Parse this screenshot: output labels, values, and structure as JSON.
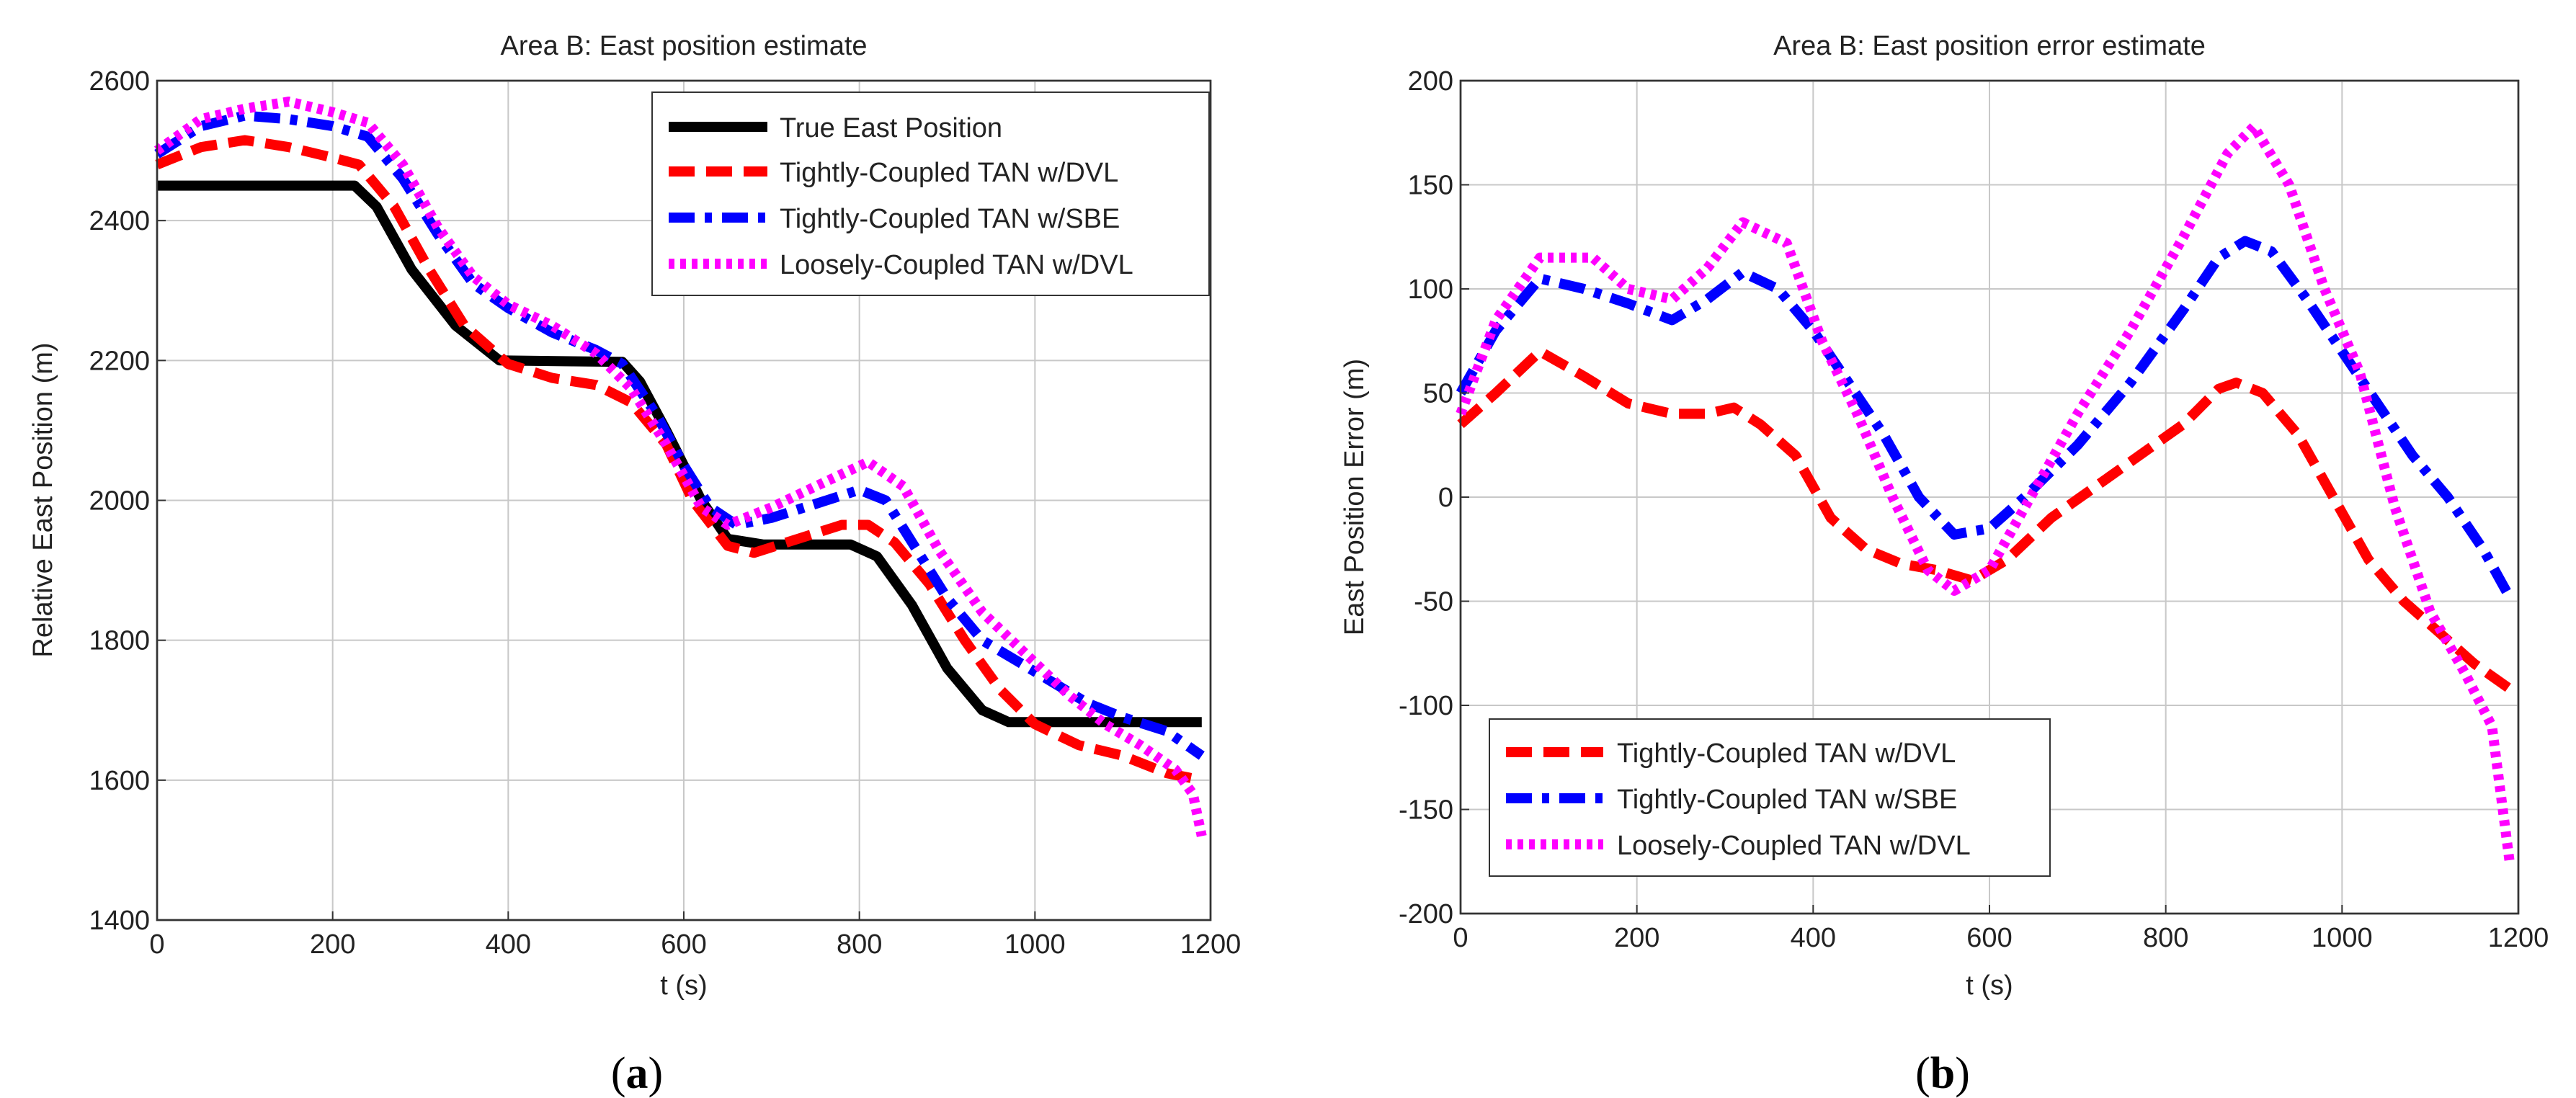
{
  "captions": {
    "a": "a",
    "b": "b"
  },
  "chart_data": [
    {
      "type": "line",
      "title": "Area B: East position estimate",
      "xlabel": "t (s)",
      "ylabel": "Relative East Position (m)",
      "xlim": [
        0,
        1200
      ],
      "ylim": [
        1400,
        2600
      ],
      "xticks": [
        0,
        200,
        400,
        600,
        800,
        1000,
        1200
      ],
      "yticks": [
        1400,
        1600,
        1800,
        2000,
        2200,
        2400,
        2600
      ],
      "xtick_labels": [
        "0",
        "200",
        "400",
        "600",
        "800",
        "1000",
        "1200"
      ],
      "ytick_labels": [
        "1400",
        "1600",
        "1800",
        "2000",
        "2200",
        "2400",
        "2600"
      ],
      "grid": true,
      "legend_position": "top-right",
      "series": [
        {
          "name": "True East Position",
          "color": "#000000",
          "style": "solid",
          "points": [
            [
              0,
              2450
            ],
            [
              225,
              2450
            ],
            [
              250,
              2420
            ],
            [
              290,
              2330
            ],
            [
              340,
              2250
            ],
            [
              390,
              2200
            ],
            [
              530,
              2198
            ],
            [
              550,
              2170
            ],
            [
              580,
              2100
            ],
            [
              620,
              2000
            ],
            [
              650,
              1945
            ],
            [
              690,
              1937
            ],
            [
              790,
              1937
            ],
            [
              820,
              1920
            ],
            [
              860,
              1850
            ],
            [
              900,
              1760
            ],
            [
              940,
              1700
            ],
            [
              970,
              1683
            ],
            [
              1190,
              1683
            ]
          ]
        },
        {
          "name": "Tightly-Coupled TAN w/DVL",
          "color": "#ff0000",
          "style": "dash",
          "points": [
            [
              0,
              2480
            ],
            [
              50,
              2505
            ],
            [
              100,
              2515
            ],
            [
              150,
              2505
            ],
            [
              200,
              2490
            ],
            [
              230,
              2480
            ],
            [
              270,
              2420
            ],
            [
              310,
              2330
            ],
            [
              350,
              2250
            ],
            [
              400,
              2195
            ],
            [
              450,
              2175
            ],
            [
              500,
              2165
            ],
            [
              540,
              2140
            ],
            [
              580,
              2080
            ],
            [
              610,
              2000
            ],
            [
              650,
              1935
            ],
            [
              680,
              1925
            ],
            [
              730,
              1945
            ],
            [
              780,
              1965
            ],
            [
              810,
              1965
            ],
            [
              840,
              1940
            ],
            [
              880,
              1880
            ],
            [
              920,
              1800
            ],
            [
              960,
              1730
            ],
            [
              1000,
              1680
            ],
            [
              1050,
              1650
            ],
            [
              1100,
              1635
            ],
            [
              1150,
              1610
            ],
            [
              1190,
              1600
            ]
          ]
        },
        {
          "name": "Tightly-Coupled TAN w/SBE",
          "color": "#0000ff",
          "style": "dashdot",
          "points": [
            [
              0,
              2495
            ],
            [
              50,
              2535
            ],
            [
              100,
              2550
            ],
            [
              150,
              2545
            ],
            [
              200,
              2535
            ],
            [
              240,
              2520
            ],
            [
              280,
              2460
            ],
            [
              320,
              2380
            ],
            [
              360,
              2310
            ],
            [
              400,
              2275
            ],
            [
              450,
              2240
            ],
            [
              500,
              2215
            ],
            [
              530,
              2195
            ],
            [
              570,
              2120
            ],
            [
              600,
              2050
            ],
            [
              630,
              1990
            ],
            [
              660,
              1965
            ],
            [
              700,
              1975
            ],
            [
              750,
              1995
            ],
            [
              800,
              2015
            ],
            [
              830,
              2000
            ],
            [
              860,
              1940
            ],
            [
              900,
              1860
            ],
            [
              940,
              1800
            ],
            [
              980,
              1770
            ],
            [
              1020,
              1740
            ],
            [
              1060,
              1710
            ],
            [
              1100,
              1690
            ],
            [
              1150,
              1670
            ],
            [
              1190,
              1635
            ]
          ]
        },
        {
          "name": "Loosely-Coupled TAN w/DVL",
          "color": "#ff00ff",
          "style": "dot",
          "points": [
            [
              0,
              2500
            ],
            [
              50,
              2545
            ],
            [
              100,
              2560
            ],
            [
              150,
              2570
            ],
            [
              200,
              2555
            ],
            [
              240,
              2540
            ],
            [
              280,
              2480
            ],
            [
              320,
              2390
            ],
            [
              360,
              2320
            ],
            [
              400,
              2280
            ],
            [
              450,
              2250
            ],
            [
              500,
              2210
            ],
            [
              540,
              2160
            ],
            [
              580,
              2080
            ],
            [
              620,
              1990
            ],
            [
              650,
              1965
            ],
            [
              700,
              1990
            ],
            [
              750,
              2020
            ],
            [
              810,
              2055
            ],
            [
              850,
              2020
            ],
            [
              890,
              1930
            ],
            [
              940,
              1840
            ],
            [
              990,
              1780
            ],
            [
              1040,
              1720
            ],
            [
              1080,
              1680
            ],
            [
              1120,
              1650
            ],
            [
              1160,
              1615
            ],
            [
              1180,
              1580
            ],
            [
              1190,
              1520
            ]
          ]
        }
      ]
    },
    {
      "type": "line",
      "title": "Area B: East position error estimate",
      "xlabel": "t (s)",
      "ylabel": "East Position Error (m)",
      "xlim": [
        0,
        1200
      ],
      "ylim": [
        -200,
        200
      ],
      "xticks": [
        0,
        200,
        400,
        600,
        800,
        1000,
        1200
      ],
      "yticks": [
        -200,
        -150,
        -100,
        -50,
        0,
        50,
        100,
        150,
        200
      ],
      "xtick_labels": [
        "0",
        "200",
        "400",
        "600",
        "800",
        "1000",
        "1200"
      ],
      "ytick_labels": [
        "-200",
        "-150",
        "-100",
        "-50",
        "0",
        "50",
        "100",
        "150",
        "200"
      ],
      "grid": true,
      "legend_position": "bottom-left",
      "series": [
        {
          "name": "Tightly-Coupled TAN w/DVL",
          "color": "#ff0000",
          "style": "dash",
          "points": [
            [
              0,
              35
            ],
            [
              40,
              50
            ],
            [
              90,
              70
            ],
            [
              140,
              58
            ],
            [
              190,
              45
            ],
            [
              240,
              40
            ],
            [
              280,
              40
            ],
            [
              310,
              43
            ],
            [
              340,
              35
            ],
            [
              380,
              20
            ],
            [
              420,
              -10
            ],
            [
              460,
              -25
            ],
            [
              500,
              -32
            ],
            [
              540,
              -35
            ],
            [
              580,
              -40
            ],
            [
              620,
              -30
            ],
            [
              670,
              -10
            ],
            [
              720,
              5
            ],
            [
              770,
              20
            ],
            [
              820,
              35
            ],
            [
              860,
              52
            ],
            [
              880,
              55
            ],
            [
              910,
              50
            ],
            [
              950,
              30
            ],
            [
              990,
              0
            ],
            [
              1030,
              -30
            ],
            [
              1070,
              -50
            ],
            [
              1110,
              -65
            ],
            [
              1150,
              -80
            ],
            [
              1190,
              -92
            ]
          ]
        },
        {
          "name": "Tightly-Coupled TAN w/SBE",
          "color": "#0000ff",
          "style": "dashdot",
          "points": [
            [
              0,
              50
            ],
            [
              40,
              80
            ],
            [
              90,
              105
            ],
            [
              140,
              100
            ],
            [
              190,
              93
            ],
            [
              240,
              85
            ],
            [
              280,
              95
            ],
            [
              320,
              108
            ],
            [
              360,
              100
            ],
            [
              400,
              80
            ],
            [
              440,
              55
            ],
            [
              480,
              30
            ],
            [
              520,
              0
            ],
            [
              560,
              -18
            ],
            [
              600,
              -15
            ],
            [
              640,
              0
            ],
            [
              700,
              25
            ],
            [
              760,
              55
            ],
            [
              820,
              90
            ],
            [
              860,
              115
            ],
            [
              890,
              123
            ],
            [
              920,
              118
            ],
            [
              960,
              95
            ],
            [
              1000,
              70
            ],
            [
              1040,
              45
            ],
            [
              1080,
              20
            ],
            [
              1120,
              0
            ],
            [
              1160,
              -25
            ],
            [
              1190,
              -48
            ]
          ]
        },
        {
          "name": "Loosely-Coupled TAN w/DVL",
          "color": "#ff00ff",
          "style": "dot",
          "points": [
            [
              0,
              40
            ],
            [
              40,
              85
            ],
            [
              90,
              115
            ],
            [
              150,
              115
            ],
            [
              190,
              100
            ],
            [
              240,
              95
            ],
            [
              280,
              110
            ],
            [
              320,
              132
            ],
            [
              370,
              122
            ],
            [
              410,
              75
            ],
            [
              450,
              40
            ],
            [
              490,
              0
            ],
            [
              530,
              -35
            ],
            [
              560,
              -45
            ],
            [
              600,
              -35
            ],
            [
              640,
              -5
            ],
            [
              700,
              40
            ],
            [
              760,
              80
            ],
            [
              820,
              125
            ],
            [
              870,
              165
            ],
            [
              900,
              178
            ],
            [
              940,
              150
            ],
            [
              980,
              100
            ],
            [
              1020,
              60
            ],
            [
              1060,
              -5
            ],
            [
              1100,
              -55
            ],
            [
              1140,
              -85
            ],
            [
              1170,
              -110
            ],
            [
              1190,
              -175
            ]
          ]
        }
      ]
    }
  ]
}
